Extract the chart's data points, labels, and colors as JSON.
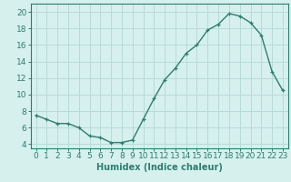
{
  "x": [
    0,
    1,
    2,
    3,
    4,
    5,
    6,
    7,
    8,
    9,
    10,
    11,
    12,
    13,
    14,
    15,
    16,
    17,
    18,
    19,
    20,
    21,
    22,
    23
  ],
  "y": [
    7.5,
    7.0,
    6.5,
    6.5,
    6.0,
    5.0,
    4.8,
    4.2,
    4.2,
    4.5,
    7.0,
    9.5,
    11.8,
    13.2,
    15.0,
    16.0,
    17.8,
    18.5,
    19.8,
    19.5,
    18.7,
    17.2,
    12.8,
    10.5
  ],
  "line_color": "#2e7d6e",
  "marker": "+",
  "bg_color": "#d6f0ee",
  "grid_color": "#b8dbd8",
  "xlabel": "Humidex (Indice chaleur)",
  "ylabel": "",
  "xlim": [
    -0.5,
    23.5
  ],
  "ylim": [
    3.5,
    21.0
  ],
  "xticks": [
    0,
    1,
    2,
    3,
    4,
    5,
    6,
    7,
    8,
    9,
    10,
    11,
    12,
    13,
    14,
    15,
    16,
    17,
    18,
    19,
    20,
    21,
    22,
    23
  ],
  "yticks": [
    4,
    6,
    8,
    10,
    12,
    14,
    16,
    18,
    20
  ],
  "xlabel_fontsize": 7,
  "tick_fontsize": 6.5
}
